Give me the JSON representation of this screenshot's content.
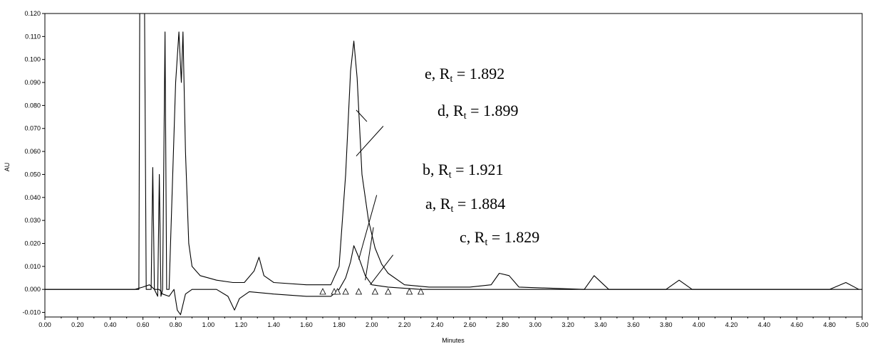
{
  "chart_data": {
    "type": "line",
    "xlabel": "Minutes",
    "ylabel": "AU",
    "xlim": [
      0.0,
      5.0
    ],
    "ylim": [
      -0.012,
      0.12
    ],
    "x_ticks": [
      {
        "v": 0.0,
        "label": "0.00"
      },
      {
        "v": 0.2,
        "label": "0.20"
      },
      {
        "v": 0.4,
        "label": "0.40"
      },
      {
        "v": 0.6,
        "label": "0.60"
      },
      {
        "v": 0.8,
        "label": "0.80"
      },
      {
        "v": 1.0,
        "label": "1.00"
      },
      {
        "v": 1.2,
        "label": "1.20"
      },
      {
        "v": 1.4,
        "label": "1.40"
      },
      {
        "v": 1.6,
        "label": "1.60"
      },
      {
        "v": 1.8,
        "label": "1.80"
      },
      {
        "v": 2.0,
        "label": "2.00"
      },
      {
        "v": 2.2,
        "label": "2.20"
      },
      {
        "v": 2.4,
        "label": "2.40"
      },
      {
        "v": 2.6,
        "label": "2.60"
      },
      {
        "v": 2.8,
        "label": "2.80"
      },
      {
        "v": 3.0,
        "label": "3.00"
      },
      {
        "v": 3.2,
        "label": "3.20"
      },
      {
        "v": 3.4,
        "label": "3.40"
      },
      {
        "v": 3.6,
        "label": "3.60"
      },
      {
        "v": 3.8,
        "label": "3.80"
      },
      {
        "v": 4.0,
        "label": "4.00"
      },
      {
        "v": 4.2,
        "label": "4.20"
      },
      {
        "v": 4.4,
        "label": "4.40"
      },
      {
        "v": 4.6,
        "label": "4.60"
      },
      {
        "v": 4.8,
        "label": "4.80"
      },
      {
        "v": 5.0,
        "label": "5.00"
      }
    ],
    "y_ticks": [
      {
        "v": -0.01,
        "label": "-0.010"
      },
      {
        "v": 0.0,
        "label": "0.000"
      },
      {
        "v": 0.01,
        "label": "0.010"
      },
      {
        "v": 0.02,
        "label": "0.020"
      },
      {
        "v": 0.03,
        "label": "0.030"
      },
      {
        "v": 0.04,
        "label": "0.040"
      },
      {
        "v": 0.05,
        "label": "0.050"
      },
      {
        "v": 0.06,
        "label": "0.060"
      },
      {
        "v": 0.07,
        "label": "0.070"
      },
      {
        "v": 0.08,
        "label": "0.080"
      },
      {
        "v": 0.09,
        "label": "0.090"
      },
      {
        "v": 0.1,
        "label": "0.100"
      },
      {
        "v": 0.11,
        "label": "0.110"
      },
      {
        "v": 0.12,
        "label": "0.120"
      }
    ],
    "series": [
      {
        "points": [
          [
            0.0,
            0.0
          ],
          [
            0.55,
            0.0
          ],
          [
            0.575,
            0.0
          ],
          [
            0.58,
            0.12
          ],
          [
            0.61,
            0.12
          ],
          [
            0.62,
            0.0
          ],
          [
            0.65,
            0.0
          ],
          [
            0.66,
            0.053
          ],
          [
            0.67,
            0.0
          ],
          [
            0.69,
            -0.003
          ],
          [
            0.7,
            0.05
          ],
          [
            0.71,
            -0.003
          ],
          [
            0.72,
            0.0
          ],
          [
            0.735,
            0.112
          ],
          [
            0.745,
            0.0
          ],
          [
            0.76,
            0.0
          ],
          [
            0.8,
            0.09
          ],
          [
            0.82,
            0.112
          ],
          [
            0.835,
            0.09
          ],
          [
            0.845,
            0.112
          ],
          [
            0.86,
            0.06
          ],
          [
            0.88,
            0.02
          ],
          [
            0.9,
            0.01
          ],
          [
            0.95,
            0.006
          ],
          [
            1.05,
            0.004
          ],
          [
            1.15,
            0.003
          ],
          [
            1.22,
            0.003
          ],
          [
            1.28,
            0.008
          ],
          [
            1.31,
            0.014
          ],
          [
            1.34,
            0.006
          ],
          [
            1.4,
            0.003
          ],
          [
            1.6,
            0.002
          ],
          [
            1.75,
            0.002
          ],
          [
            1.8,
            0.01
          ],
          [
            1.84,
            0.05
          ],
          [
            1.87,
            0.095
          ],
          [
            1.89,
            0.108
          ],
          [
            1.91,
            0.092
          ],
          [
            1.94,
            0.05
          ],
          [
            1.98,
            0.03
          ],
          [
            2.02,
            0.018
          ],
          [
            2.06,
            0.011
          ],
          [
            2.1,
            0.007
          ],
          [
            2.2,
            0.002
          ],
          [
            2.35,
            0.001
          ],
          [
            2.6,
            0.001
          ],
          [
            2.73,
            0.002
          ],
          [
            2.78,
            0.007
          ],
          [
            2.84,
            0.006
          ],
          [
            2.9,
            0.001
          ],
          [
            3.3,
            0.0
          ],
          [
            3.36,
            0.006
          ],
          [
            3.45,
            0.0
          ],
          [
            3.8,
            0.0
          ],
          [
            3.88,
            0.004
          ],
          [
            3.96,
            0.0
          ],
          [
            4.8,
            0.0
          ],
          [
            4.9,
            0.003
          ],
          [
            4.98,
            0.0
          ]
        ]
      },
      {
        "points": [
          [
            0.0,
            0.0
          ],
          [
            0.55,
            0.0
          ],
          [
            0.6,
            0.001
          ],
          [
            0.64,
            0.002
          ],
          [
            0.67,
            0.0
          ],
          [
            0.7,
            0.0
          ],
          [
            0.72,
            -0.002
          ],
          [
            0.76,
            -0.003
          ],
          [
            0.79,
            0.0
          ],
          [
            0.81,
            -0.009
          ],
          [
            0.83,
            -0.011
          ],
          [
            0.86,
            -0.002
          ],
          [
            0.9,
            0.0
          ],
          [
            1.05,
            0.0
          ],
          [
            1.12,
            -0.003
          ],
          [
            1.16,
            -0.009
          ],
          [
            1.19,
            -0.004
          ],
          [
            1.25,
            -0.001
          ],
          [
            1.4,
            -0.002
          ],
          [
            1.6,
            -0.003
          ],
          [
            1.75,
            -0.003
          ],
          [
            1.8,
            0.0
          ],
          [
            1.84,
            0.005
          ],
          [
            1.87,
            0.012
          ],
          [
            1.89,
            0.019
          ],
          [
            1.92,
            0.014
          ],
          [
            1.96,
            0.006
          ],
          [
            2.0,
            0.002
          ],
          [
            2.1,
            0.001
          ],
          [
            2.3,
            0.0
          ],
          [
            5.0,
            0.0
          ]
        ]
      }
    ],
    "annotations": [
      {
        "label": "e, R",
        "sub": "t",
        "value": " = 1.892"
      },
      {
        "label": "d, R",
        "sub": "t",
        "value": " = 1.899"
      },
      {
        "label": "b, R",
        "sub": "t",
        "value": " = 1.921"
      },
      {
        "label": "a, R",
        "sub": "t",
        "value": " = 1.884"
      },
      {
        "label": "c, R",
        "sub": "t",
        "value": " = 1.829"
      }
    ],
    "peak_markers_x": [
      1.7,
      1.77,
      1.79,
      1.84,
      1.92,
      2.02,
      2.1,
      2.23,
      2.3
    ]
  }
}
